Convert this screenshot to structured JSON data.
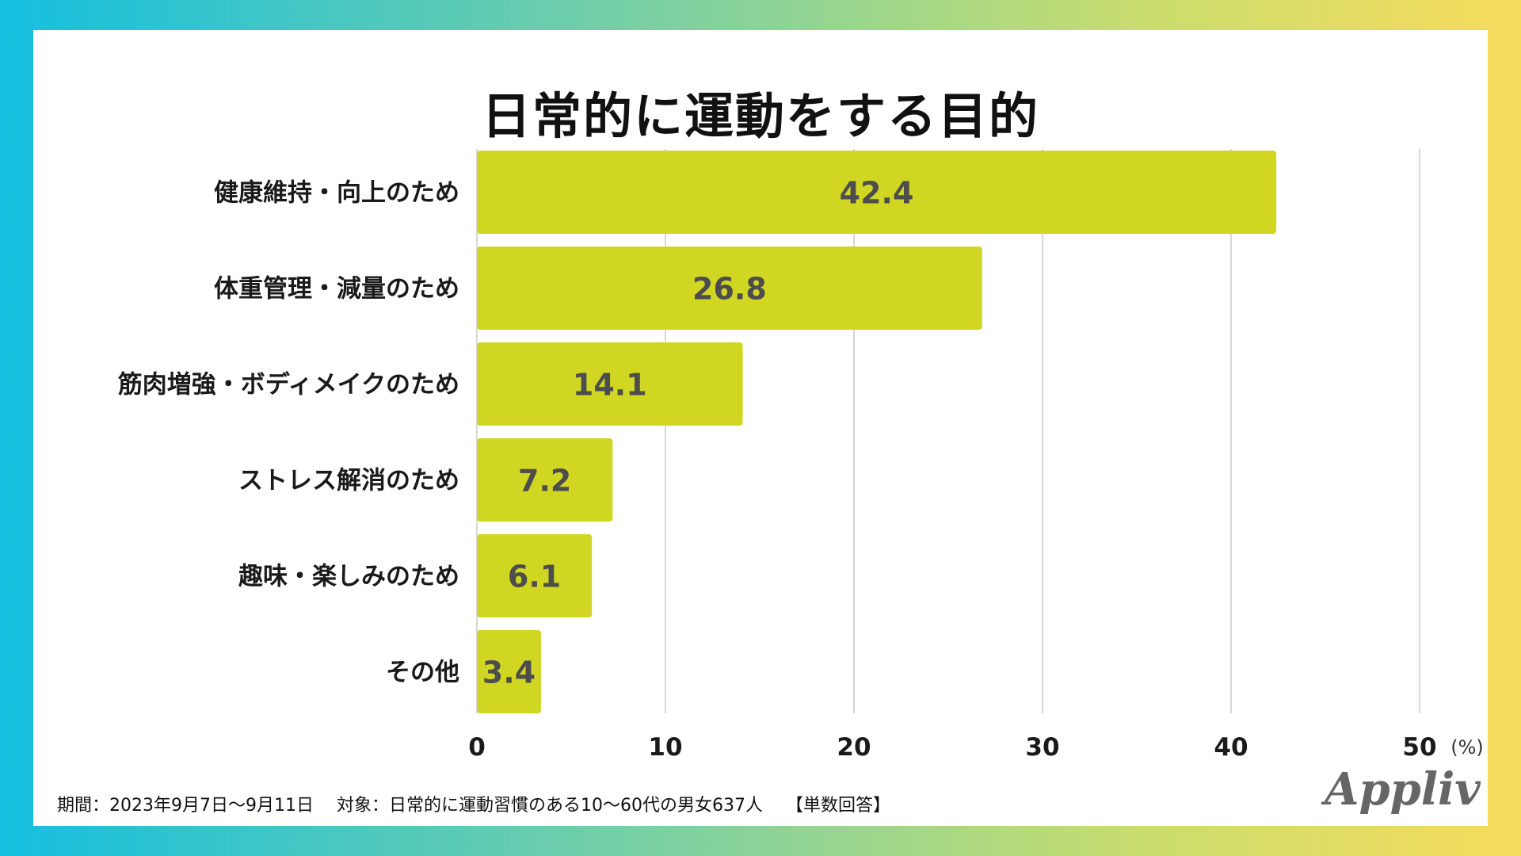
{
  "title": "日常的に運動をする目的",
  "footer": {
    "period": "期間：2023年9月7日〜9月11日",
    "target": "対象：日常的に運動習慣のある10〜60代の男女637人",
    "method": "【単数回答】"
  },
  "brand": "Appliv",
  "colors": {
    "bar": "#d0d622",
    "grid": "#cccccc"
  },
  "chart_data": {
    "type": "bar",
    "orientation": "horizontal",
    "title": "日常的に運動をする目的",
    "categories": [
      "健康維持・向上のため",
      "体重管理・減量のため",
      "筋肉増強・ボディメイクのため",
      "ストレス解消のため",
      "趣味・楽しみのため",
      "その他"
    ],
    "values": [
      42.4,
      26.8,
      14.1,
      7.2,
      6.1,
      3.4
    ],
    "value_labels": [
      "42.4",
      "26.8",
      "14.1",
      "7.2",
      "6.1",
      "3.4"
    ],
    "xlim": [
      0,
      50
    ],
    "xticks": [
      "0",
      "10",
      "20",
      "30",
      "40",
      "50"
    ],
    "unit": "(%)",
    "grid": true
  }
}
